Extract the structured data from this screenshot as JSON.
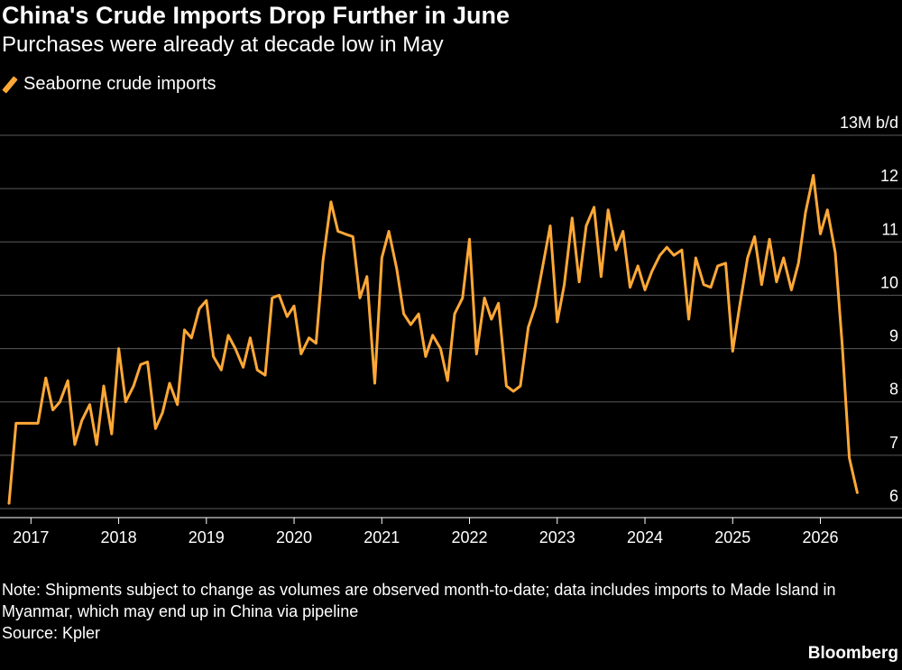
{
  "title": "China's Crude Imports Drop Further in June",
  "subtitle": "Purchases were already at decade low in May",
  "note": "Note: Shipments subject to change as volumes are observed month-to-date; data includes imports to Made Island in Myanmar, which may end up in China via pipeline",
  "source": "Source: Kpler",
  "brand": "Bloomberg",
  "colors": {
    "series": "#ffa836",
    "background": "#000000",
    "grid": "#5a5a5a"
  },
  "chart_data": {
    "type": "line",
    "title": "China's Crude Imports Drop Further in June",
    "subtitle": "Purchases were already at decade low in May",
    "legend_position": "top-left",
    "grid": true,
    "ylabel_unit": "13M b/d",
    "ylim": [
      6,
      13
    ],
    "y_ticks": [
      {
        "value": 6,
        "label": "6"
      },
      {
        "value": 7,
        "label": "7"
      },
      {
        "value": 8,
        "label": "8"
      },
      {
        "value": 9,
        "label": "9"
      },
      {
        "value": 10,
        "label": "10"
      },
      {
        "value": 11,
        "label": "11"
      },
      {
        "value": 12,
        "label": "12"
      },
      {
        "value": 13,
        "label": "13M b/d"
      }
    ],
    "x_ticks": [
      "2017",
      "2018",
      "2019",
      "2020",
      "2021",
      "2022",
      "2023",
      "2024",
      "2025",
      "2026"
    ],
    "xlim": [
      2016.75,
      2026.55
    ],
    "series": [
      {
        "name": "Seaborne crude imports",
        "x": [
          2016.75,
          2016.83,
          2016.92,
          2017.0,
          2017.08,
          2017.17,
          2017.25,
          2017.33,
          2017.42,
          2017.5,
          2017.58,
          2017.67,
          2017.75,
          2017.83,
          2017.92,
          2018.0,
          2018.08,
          2018.17,
          2018.25,
          2018.33,
          2018.42,
          2018.5,
          2018.58,
          2018.67,
          2018.75,
          2018.83,
          2018.92,
          2019.0,
          2019.08,
          2019.17,
          2019.25,
          2019.33,
          2019.42,
          2019.5,
          2019.58,
          2019.67,
          2019.75,
          2019.83,
          2019.92,
          2020.0,
          2020.08,
          2020.17,
          2020.25,
          2020.33,
          2020.42,
          2020.5,
          2020.58,
          2020.67,
          2020.75,
          2020.83,
          2020.92,
          2021.0,
          2021.08,
          2021.17,
          2021.25,
          2021.33,
          2021.42,
          2021.5,
          2021.58,
          2021.67,
          2021.75,
          2021.83,
          2021.92,
          2022.0,
          2022.08,
          2022.17,
          2022.25,
          2022.33,
          2022.42,
          2022.5,
          2022.58,
          2022.67,
          2022.75,
          2022.83,
          2022.92,
          2023.0,
          2023.08,
          2023.17,
          2023.25,
          2023.33,
          2023.42,
          2023.5,
          2023.58,
          2023.67,
          2023.75,
          2023.83,
          2023.92,
          2024.0,
          2024.08,
          2024.17,
          2024.25,
          2024.33,
          2024.42,
          2024.5,
          2024.58,
          2024.67,
          2024.75,
          2024.83,
          2024.92,
          2025.0,
          2025.08,
          2025.17,
          2025.25,
          2025.33,
          2025.42,
          2025.5,
          2025.58,
          2025.67,
          2025.75,
          2025.83,
          2025.92,
          2026.0,
          2026.08,
          2026.17,
          2026.25,
          2026.33,
          2026.42
        ],
        "values": [
          6.1,
          7.6,
          7.6,
          7.6,
          7.6,
          8.45,
          7.85,
          8.0,
          8.4,
          7.2,
          7.65,
          7.95,
          7.2,
          8.3,
          7.4,
          9.0,
          8.0,
          8.3,
          8.7,
          8.75,
          7.5,
          7.8,
          8.35,
          7.95,
          9.35,
          9.2,
          9.75,
          9.9,
          8.85,
          8.6,
          9.25,
          9.0,
          8.65,
          9.2,
          8.6,
          8.5,
          9.95,
          10.0,
          9.6,
          9.8,
          8.9,
          9.2,
          9.1,
          10.65,
          11.75,
          11.2,
          11.15,
          11.1,
          9.95,
          10.35,
          8.35,
          10.7,
          11.2,
          10.5,
          9.65,
          9.45,
          9.65,
          8.85,
          9.25,
          9.0,
          8.4,
          9.65,
          9.95,
          11.05,
          8.9,
          9.95,
          9.55,
          9.85,
          8.3,
          8.2,
          8.3,
          9.4,
          9.8,
          10.5,
          11.3,
          9.5,
          10.2,
          11.45,
          10.25,
          11.3,
          11.65,
          10.35,
          11.6,
          10.85,
          11.2,
          10.15,
          10.55,
          10.1,
          10.45,
          10.75,
          10.9,
          10.75,
          10.85,
          9.55,
          10.7,
          10.2,
          10.15,
          10.55,
          10.6,
          8.95,
          9.8,
          10.7,
          11.1,
          10.2,
          11.05,
          10.25,
          10.7,
          10.1,
          10.6,
          11.55,
          12.25,
          11.15,
          11.6,
          10.8,
          9.05,
          6.95,
          6.3
        ]
      }
    ]
  }
}
